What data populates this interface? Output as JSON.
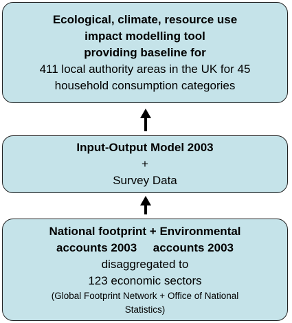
{
  "boxes": [
    {
      "bold_lines": [
        "Ecological, climate, resource use",
        "impact modelling tool",
        "providing baseline for"
      ],
      "lines": [
        "411 local authority areas in the UK for 45",
        "household consumption categories"
      ],
      "note_lines": []
    },
    {
      "bold_lines": [
        "Input-Output Model 2003"
      ],
      "lines": [
        "+",
        "Survey Data"
      ],
      "note_lines": []
    },
    {
      "bold_lines": [
        "National footprint + Environmental",
        "accounts 2003     accounts 2003"
      ],
      "lines": [
        "disaggregated to",
        "123 economic sectors"
      ],
      "note_lines": [
        "(Global Footprint Network + Office of National",
        "Statistics)"
      ]
    }
  ]
}
